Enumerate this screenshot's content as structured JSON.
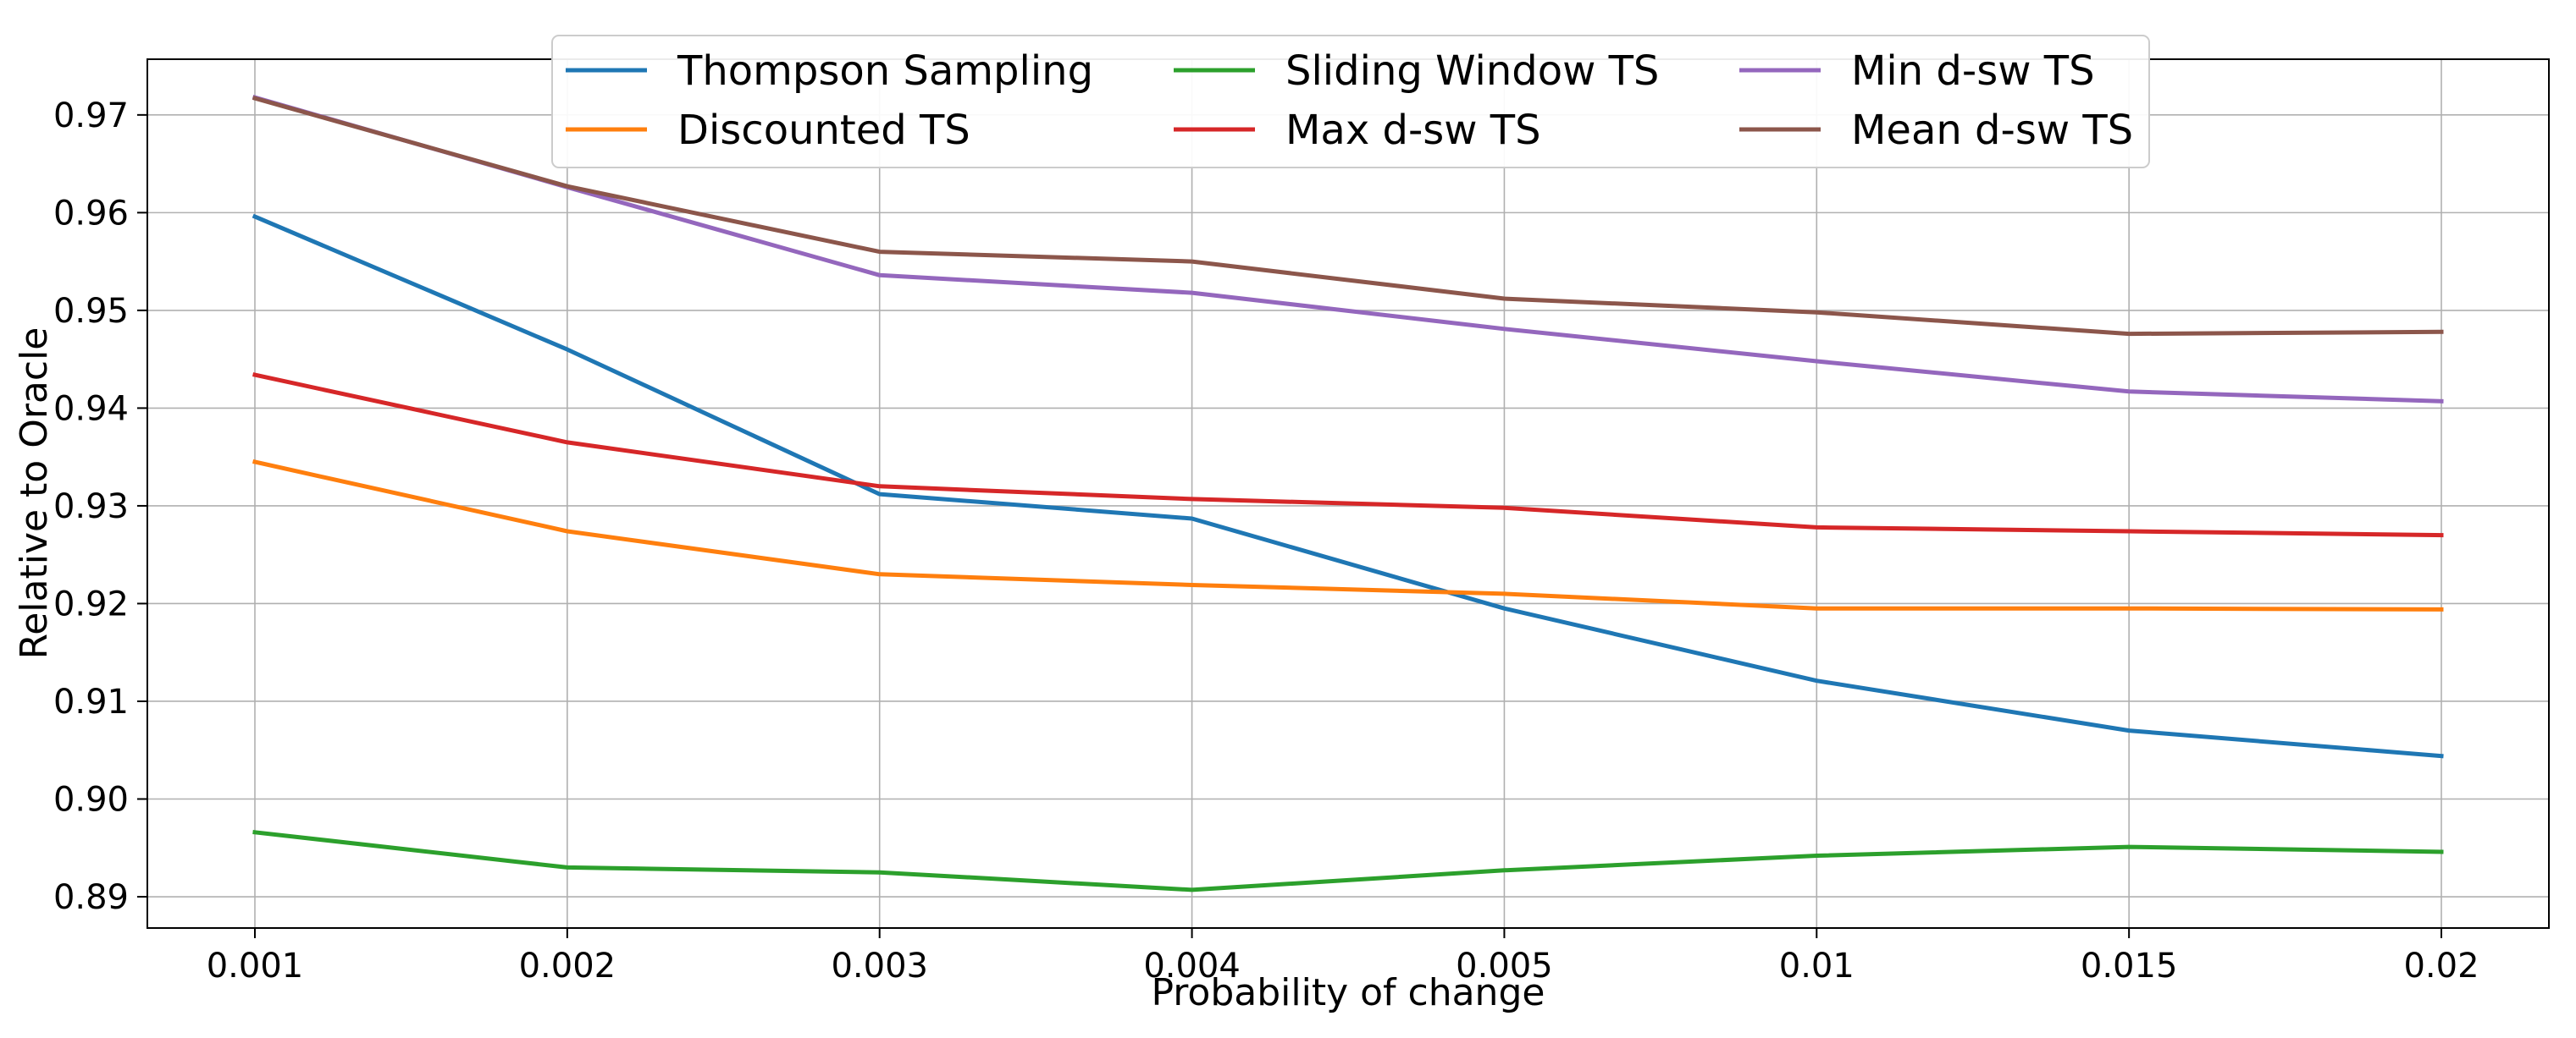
{
  "chart_data": {
    "type": "line",
    "title": "",
    "xlabel": "Probability of change",
    "ylabel": "Relative to Oracle",
    "categories": [
      "0.001",
      "0.002",
      "0.003",
      "0.004",
      "0.005",
      "0.01",
      "0.015",
      "0.02"
    ],
    "ylim": [
      0.8868,
      0.9757
    ],
    "yticks": [
      "0.89",
      "0.90",
      "0.91",
      "0.92",
      "0.93",
      "0.94",
      "0.95",
      "0.96",
      "0.97"
    ],
    "grid": true,
    "legend_position": "top-center",
    "legend_columns": 3,
    "series": [
      {
        "name": "Thompson Sampling",
        "color": "#1f77b4",
        "values": [
          0.9596,
          0.946,
          0.9312,
          0.9287,
          0.9195,
          0.9121,
          0.907,
          0.9044
        ]
      },
      {
        "name": "Discounted TS",
        "color": "#ff7f0e",
        "values": [
          0.9345,
          0.9274,
          0.923,
          0.9219,
          0.921,
          0.9195,
          0.9195,
          0.9194
        ]
      },
      {
        "name": "Sliding Window TS",
        "color": "#2ca02c",
        "values": [
          0.8966,
          0.893,
          0.8925,
          0.8907,
          0.8927,
          0.8942,
          0.8951,
          0.8946
        ]
      },
      {
        "name": "Max d-sw TS",
        "color": "#d62728",
        "values": [
          0.9434,
          0.9365,
          0.932,
          0.9307,
          0.9298,
          0.9278,
          0.9274,
          0.927
        ]
      },
      {
        "name": "Min d-sw TS",
        "color": "#9467bd",
        "values": [
          0.9718,
          0.9626,
          0.9536,
          0.9518,
          0.9481,
          0.9448,
          0.9417,
          0.9407
        ]
      },
      {
        "name": "Mean d-sw TS",
        "color": "#8c564b",
        "values": [
          0.9717,
          0.9627,
          0.956,
          0.955,
          0.9512,
          0.9498,
          0.9476,
          0.9478
        ]
      }
    ]
  }
}
